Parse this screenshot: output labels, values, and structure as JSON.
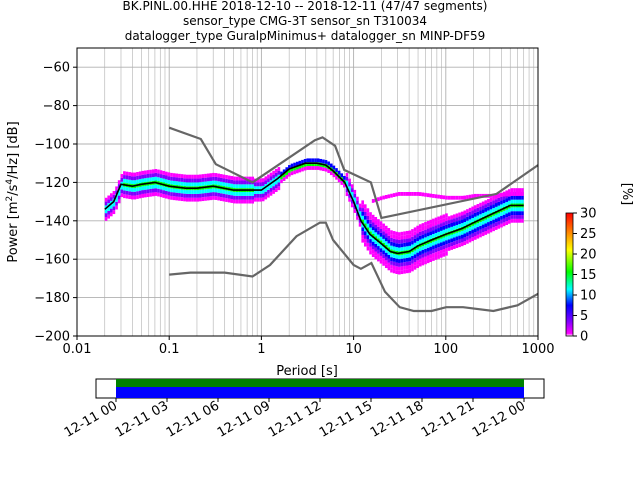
{
  "chart_data": {
    "type": "heatmap",
    "title_lines": [
      "BK.PINL.00.HHE   2018-12-10 -- 2018-12-11  (47/47 segments)",
      "sensor_type CMG-3T sensor_sn T310034",
      "datalogger_type GuralpMinimus+ datalogger_sn MINP-DF59"
    ],
    "xlabel": "Period [s]",
    "ylabel_parts": {
      "main": "Power [m",
      "sup1": "2",
      "mid": "/s",
      "sup2": "4",
      "tail": "/Hz] [dB]"
    },
    "xscale": "log",
    "xlim": [
      0.01,
      1000
    ],
    "ylim": [
      -200,
      -50
    ],
    "x_ticks": [
      0.01,
      0.1,
      1,
      10,
      100,
      1000
    ],
    "x_tick_labels": [
      "0.01",
      "0.1",
      "1",
      "10",
      "100",
      "1000"
    ],
    "y_ticks": [
      -200,
      -180,
      -160,
      -140,
      -120,
      -100,
      -80,
      -60
    ],
    "y_tick_labels": [
      "−200",
      "−180",
      "−160",
      "−140",
      "−120",
      "−100",
      "−80",
      "−60"
    ],
    "grid": true,
    "colorbar": {
      "label": "[%]",
      "range": [
        0,
        30
      ],
      "ticks": [
        0,
        5,
        10,
        15,
        20,
        25,
        30
      ],
      "tick_labels": [
        "0",
        "5",
        "10",
        "15",
        "20",
        "25",
        "30"
      ]
    },
    "mode_line": {
      "name": "mode",
      "x": [
        0.02,
        0.025,
        0.03,
        0.04,
        0.05,
        0.07,
        0.1,
        0.15,
        0.2,
        0.3,
        0.5,
        0.7,
        1,
        1.5,
        2,
        3,
        4,
        5,
        6,
        8,
        10,
        12,
        15,
        20,
        25,
        30,
        40,
        50,
        70,
        100,
        150,
        200,
        300,
        500,
        700
      ],
      "y": [
        -134,
        -130,
        -121,
        -122,
        -121,
        -120,
        -122,
        -123,
        -123,
        -122,
        -124,
        -124,
        -124,
        -118,
        -113,
        -110,
        -110,
        -111,
        -114,
        -120,
        -130,
        -140,
        -147,
        -152,
        -156,
        -157,
        -156,
        -153,
        -150,
        -147,
        -144,
        -141,
        -137,
        -132,
        -132
      ]
    },
    "nlnm": {
      "name": "NLNM",
      "x": [
        0.1,
        0.17,
        0.4,
        0.8,
        1.24,
        2.4,
        4.3,
        5,
        6,
        10,
        12,
        15.6,
        21.9,
        31.6,
        45,
        70,
        101,
        154,
        328,
        600,
        1000
      ],
      "y": [
        -168,
        -167,
        -167,
        -169,
        -163,
        -148,
        -141,
        -141,
        -150,
        -163,
        -165,
        -162,
        -177,
        -185,
        -187,
        -187,
        -185,
        -185,
        -187,
        -184,
        -178
      ]
    },
    "nhnm": {
      "name": "NHNM",
      "x": [
        0.1,
        0.22,
        0.32,
        0.8,
        3.8,
        4.6,
        6.3,
        7.9,
        15.4,
        20,
        354.8,
        1000
      ],
      "y": [
        -91.5,
        -97.4,
        -110.5,
        -120,
        -98,
        -96.5,
        -101,
        -113.5,
        -120,
        -138.5,
        -126,
        -111
      ]
    },
    "secondary_trace": {
      "x": [
        15,
        20,
        30,
        50,
        70,
        100,
        150,
        200,
        300,
        500,
        700
      ],
      "y": [
        -130,
        -128,
        -126,
        -126,
        -127,
        -128,
        -128,
        -127,
        -127,
        -126,
        -126
      ]
    },
    "time_axis": {
      "tick_labels": [
        "12-11 00",
        "12-11 03",
        "12-11 06",
        "12-11 09",
        "12-11 12",
        "12-11 15",
        "12-11 18",
        "12-11 21",
        "12-12 00"
      ],
      "coverage": [
        {
          "start_hour": 0,
          "end_hour": 24,
          "state": "full"
        }
      ],
      "colors": {
        "data": "#0000ff",
        "gaps_top": "#008000"
      }
    },
    "colors": {
      "mode": "#000000",
      "noise_models": "#666666",
      "grid": "#b0b0b0"
    }
  }
}
